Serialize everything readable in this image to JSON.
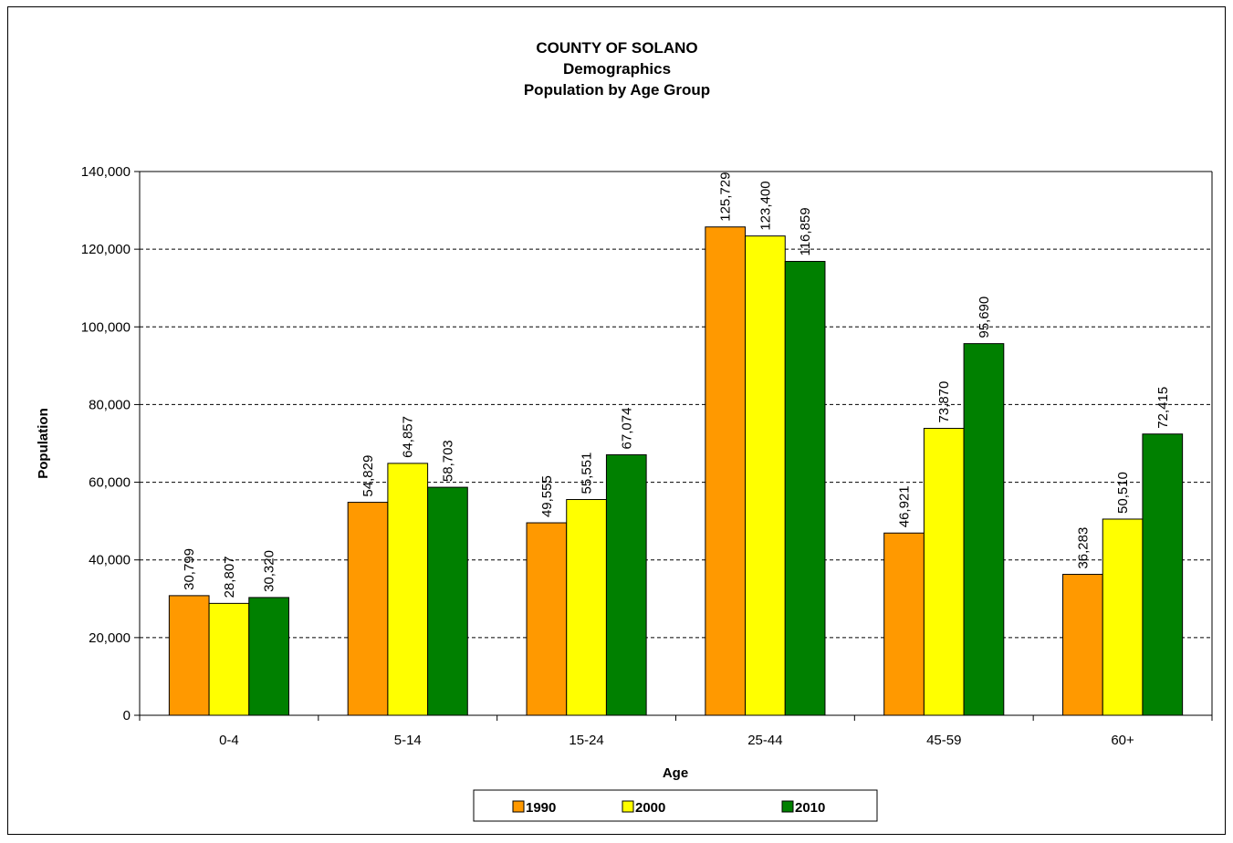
{
  "chart_data": {
    "type": "bar",
    "title_lines": [
      "COUNTY OF SOLANO",
      "Demographics",
      "Population by Age Group"
    ],
    "xlabel": "Age",
    "ylabel": "Population",
    "ylim": [
      0,
      140000
    ],
    "yticks": [
      {
        "value": 0,
        "label": "0"
      },
      {
        "value": 20000,
        "label": "20,000"
      },
      {
        "value": 40000,
        "label": "40,000"
      },
      {
        "value": 60000,
        "label": "60,000"
      },
      {
        "value": 80000,
        "label": "80,000"
      },
      {
        "value": 100000,
        "label": "100,000"
      },
      {
        "value": 120000,
        "label": "120,000"
      },
      {
        "value": 140000,
        "label": "140,000"
      }
    ],
    "grid": true,
    "legend_position": "bottom",
    "categories": [
      "0-4",
      "5-14",
      "15-24",
      "25-44",
      "45-59",
      "60+"
    ],
    "series": [
      {
        "name": "1990",
        "color": "#FF9900",
        "values": [
          30799,
          54829,
          49555,
          125729,
          46921,
          36283
        ],
        "labels": [
          "30,799",
          "54,829",
          "49,555",
          "125,729",
          "46,921",
          "36,283"
        ]
      },
      {
        "name": "2000",
        "color": "#FFFF00",
        "values": [
          28807,
          64857,
          55551,
          123400,
          73870,
          50510
        ],
        "labels": [
          "28,807",
          "64,857",
          "55,551",
          "123,400",
          "73,870",
          "50,510"
        ]
      },
      {
        "name": "2010",
        "color": "#008000",
        "values": [
          30320,
          58703,
          67074,
          116859,
          95690,
          72415
        ],
        "labels": [
          "30,320",
          "58,703",
          "67,074",
          "116,859",
          "95,690",
          "72,415"
        ]
      }
    ]
  }
}
